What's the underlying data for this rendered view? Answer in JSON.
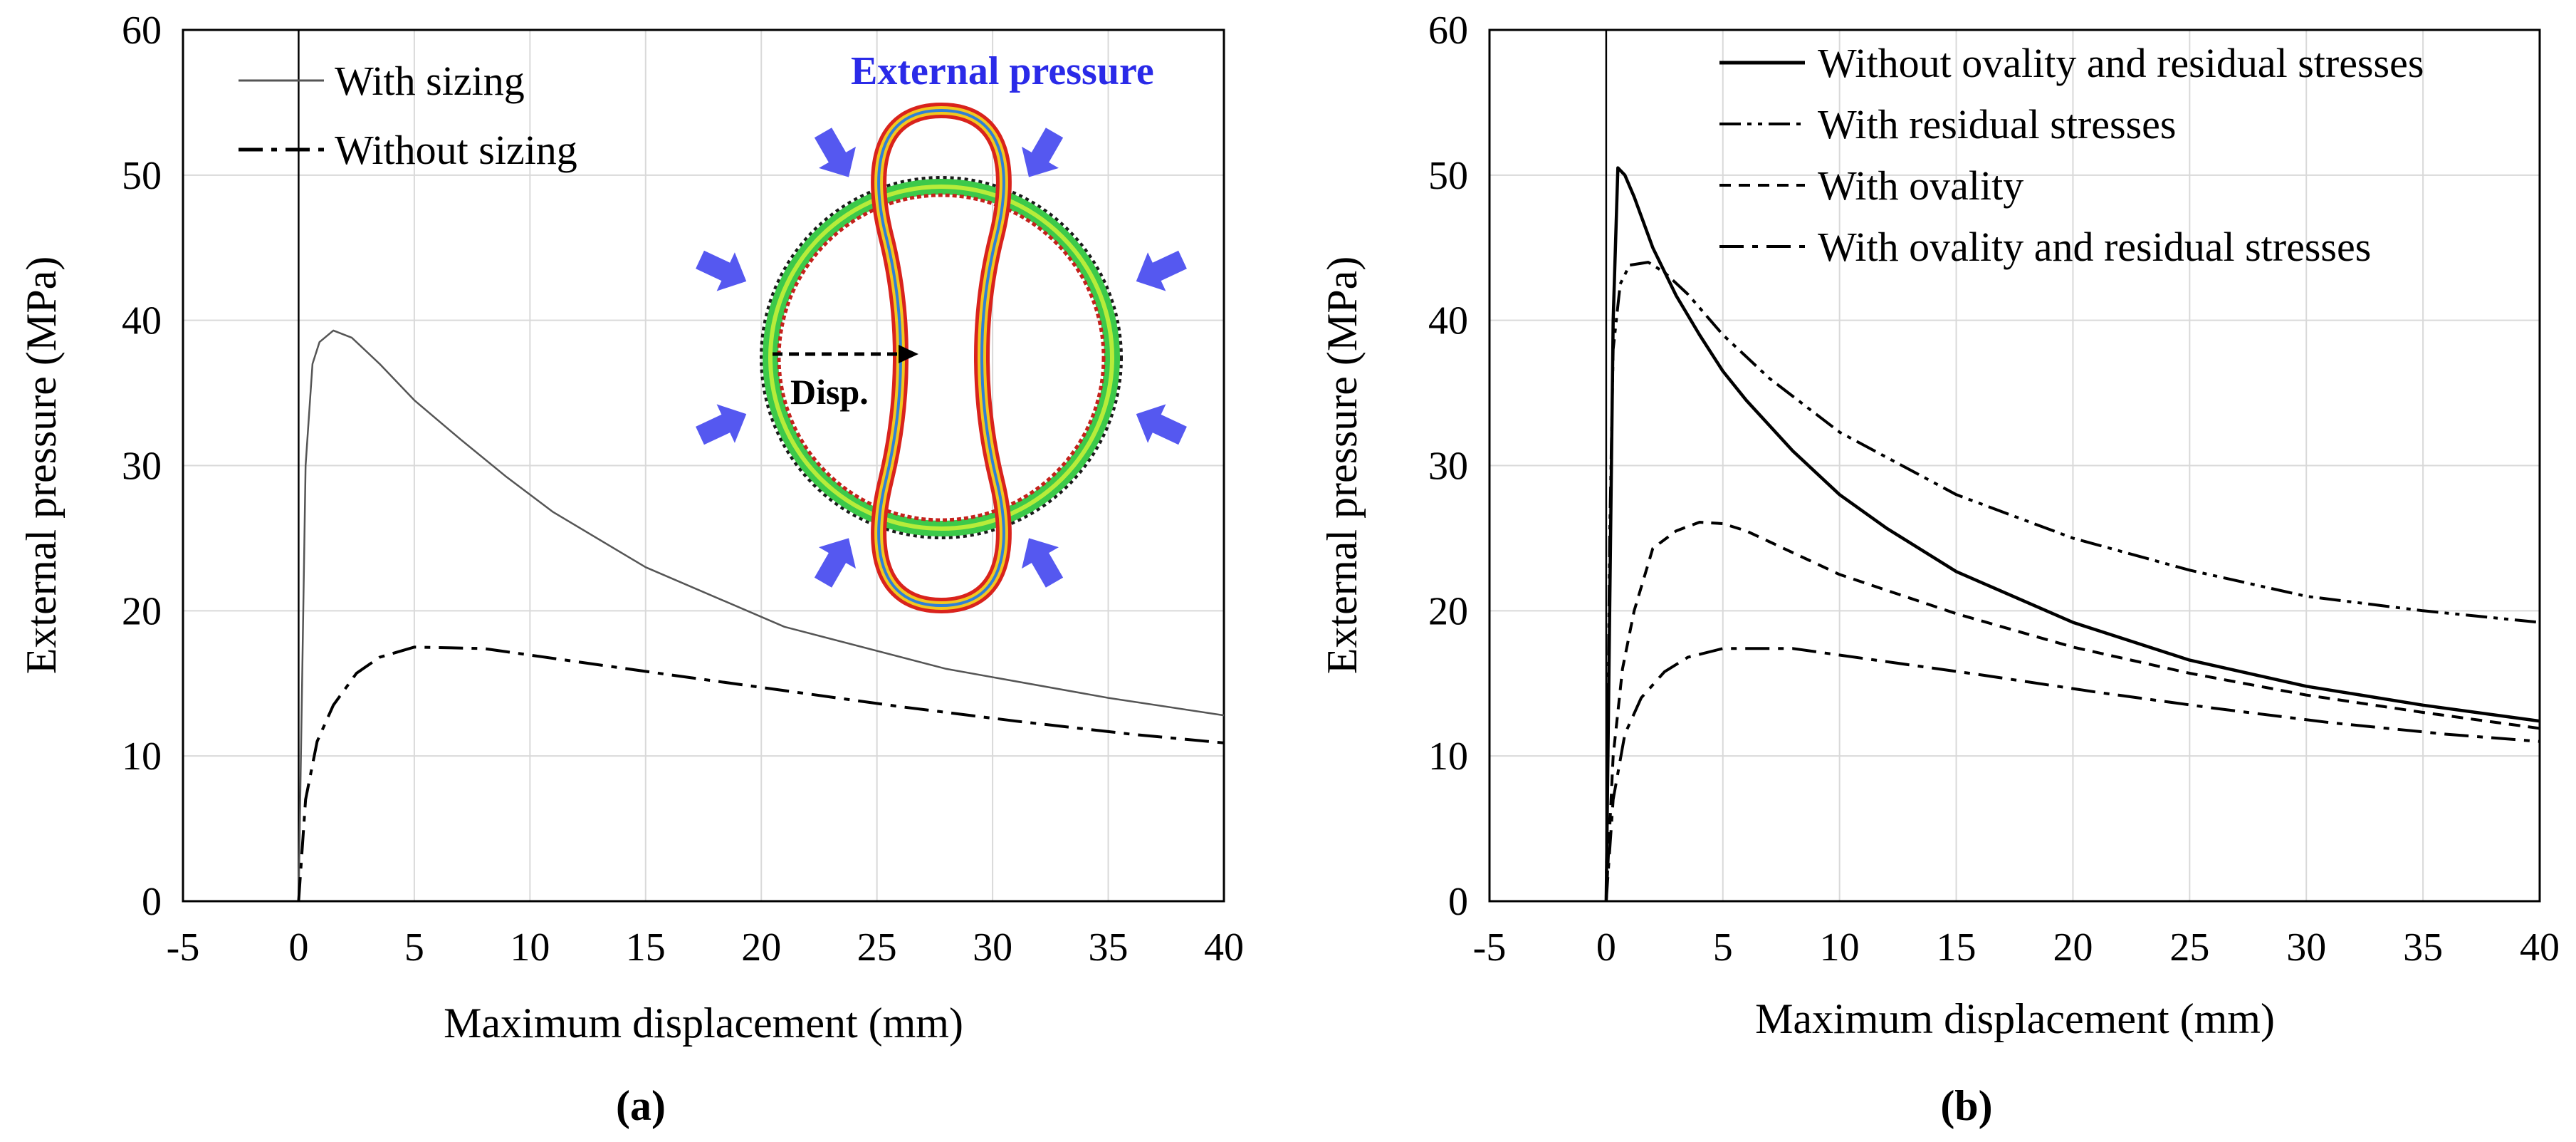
{
  "chart_data": [
    {
      "type": "line",
      "caption": "(a)",
      "xlabel": "Maximum displacement (mm)",
      "ylabel": "External pressure (MPa)",
      "xlim": [
        -5,
        40
      ],
      "ylim": [
        0,
        60
      ],
      "xticks": [
        -5,
        0,
        5,
        10,
        15,
        20,
        25,
        30,
        35,
        40
      ],
      "yticks": [
        0,
        10,
        20,
        30,
        40,
        50,
        60
      ],
      "grid": true,
      "legend_position": "top-left",
      "series": [
        {
          "name": "With sizing",
          "style": "solid-thin",
          "x": [
            0,
            0.3,
            0.6,
            0.9,
            1.5,
            2.3,
            3.5,
            5,
            7,
            9,
            11,
            15,
            21,
            28,
            35,
            40
          ],
          "y": [
            0,
            30,
            37,
            38.5,
            39.3,
            38.8,
            37,
            34.5,
            31.8,
            29.2,
            26.8,
            23,
            18.9,
            16,
            14,
            12.8
          ]
        },
        {
          "name": "Without sizing",
          "style": "dash-dot",
          "x": [
            0,
            0.3,
            0.8,
            1.5,
            2.5,
            3.5,
            5,
            8,
            12,
            16,
            21,
            26,
            31,
            36,
            40
          ],
          "y": [
            0,
            7,
            11,
            13.5,
            15.7,
            16.8,
            17.5,
            17.4,
            16.5,
            15.6,
            14.5,
            13.4,
            12.4,
            11.5,
            10.9
          ]
        }
      ],
      "inset": {
        "title": "External pressure",
        "label": "Disp."
      }
    },
    {
      "type": "line",
      "caption": "(b)",
      "xlabel": "Maximum displacement (mm)",
      "ylabel": "External pressure (MPa)",
      "xlim": [
        -5,
        40
      ],
      "ylim": [
        0,
        60
      ],
      "xticks": [
        -5,
        0,
        5,
        10,
        15,
        20,
        25,
        30,
        35,
        40
      ],
      "yticks": [
        0,
        10,
        20,
        30,
        40,
        50,
        60
      ],
      "grid": true,
      "legend_position": "top-right",
      "series": [
        {
          "name": "Without ovality and residual stresses",
          "style": "solid",
          "x": [
            0,
            0.15,
            0.3,
            0.5,
            0.8,
            1.2,
            2,
            3,
            4,
            5,
            6,
            8,
            10,
            12,
            15,
            20,
            25,
            30,
            35,
            40
          ],
          "y": [
            0,
            20,
            40,
            50.5,
            50,
            48.5,
            45,
            41.7,
            39,
            36.5,
            34.5,
            31,
            28,
            25.7,
            22.7,
            19.2,
            16.6,
            14.8,
            13.5,
            12.4
          ]
        },
        {
          "name": "With residual stresses",
          "style": "dash-dot-dot",
          "x": [
            0,
            0.15,
            0.3,
            0.6,
            1,
            1.8,
            2.5,
            3.5,
            5,
            7,
            10,
            15,
            20,
            25,
            30,
            35,
            40
          ],
          "y": [
            0,
            25,
            38,
            42.5,
            43.8,
            44,
            43.3,
            41.8,
            39,
            36,
            32.3,
            28,
            25,
            22.8,
            21,
            20,
            19.2
          ]
        },
        {
          "name": "With ovality",
          "style": "dashed",
          "x": [
            0,
            0.3,
            0.7,
            1.2,
            2,
            3,
            4,
            5,
            6,
            8,
            10,
            15,
            20,
            25,
            30,
            35,
            40
          ],
          "y": [
            0,
            10,
            16,
            20,
            24.3,
            25.5,
            26.1,
            26,
            25.5,
            24,
            22.5,
            19.8,
            17.5,
            15.7,
            14.2,
            13,
            11.9
          ]
        },
        {
          "name": "With ovality and residual stresses",
          "style": "dash-dot",
          "x": [
            0,
            0.3,
            0.8,
            1.5,
            2.5,
            3.5,
            5,
            8,
            12,
            16,
            21,
            26,
            31,
            36,
            40
          ],
          "y": [
            0,
            7,
            11.5,
            14,
            15.8,
            16.8,
            17.4,
            17.4,
            16.5,
            15.6,
            14.4,
            13.3,
            12.3,
            11.5,
            11
          ]
        }
      ]
    }
  ]
}
